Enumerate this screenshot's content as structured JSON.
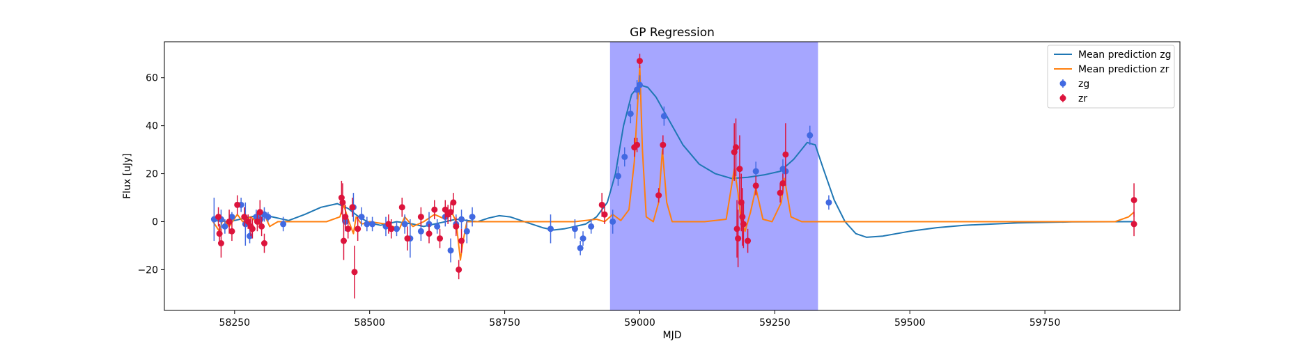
{
  "chart_data": {
    "type": "line",
    "title": "GP Regression",
    "xlabel": "MJD",
    "ylabel": "Flux [uJy]",
    "xlim": [
      58120,
      60000
    ],
    "ylim": [
      -37,
      75
    ],
    "xticks": [
      58250,
      58500,
      58750,
      59000,
      59250,
      59500,
      59750
    ],
    "yticks": [
      -20,
      0,
      20,
      40,
      60
    ],
    "grid": false,
    "legend_position": "top-right",
    "shaded_region": {
      "x": [
        58945,
        59330
      ],
      "color": "#a6a6ff"
    },
    "series": [
      {
        "name": "Mean prediction zg",
        "kind": "line",
        "color": "#1f77b4",
        "x": [
          58210,
          58240,
          58270,
          58300,
          58320,
          58350,
          58380,
          58410,
          58440,
          58460,
          58480,
          58500,
          58520,
          58550,
          58580,
          58600,
          58620,
          58640,
          58660,
          58680,
          58700,
          58720,
          58740,
          58760,
          58780,
          58800,
          58820,
          58840,
          58860,
          58880,
          58900,
          58920,
          58940,
          58955,
          58970,
          58985,
          59000,
          59015,
          59030,
          59050,
          59080,
          59110,
          59140,
          59170,
          59200,
          59230,
          59260,
          59285,
          59310,
          59325,
          59340,
          59360,
          59380,
          59400,
          59420,
          59450,
          59500,
          59550,
          59600,
          59700,
          59800,
          59900,
          59915
        ],
        "y": [
          0.5,
          0,
          1.5,
          3,
          2,
          0.5,
          3,
          6,
          7.5,
          5.5,
          2,
          -0.5,
          -1.5,
          0,
          -1,
          -2,
          -1,
          0,
          1,
          0.5,
          0,
          1.5,
          2.5,
          2,
          0.5,
          -1,
          -2.5,
          -3.5,
          -3,
          -2,
          -1,
          2,
          8,
          20,
          40,
          53,
          57,
          56,
          52,
          44,
          32,
          24,
          20,
          18,
          18.5,
          19.5,
          21,
          26,
          33,
          32,
          22,
          9,
          0,
          -5,
          -6.5,
          -6,
          -4,
          -2.5,
          -1.5,
          -0.5,
          -0.1,
          0,
          0
        ]
      },
      {
        "name": "Mean prediction zr",
        "kind": "line",
        "color": "#ff7f0e",
        "x": [
          58210,
          58222,
          58228,
          58240,
          58255,
          58265,
          58280,
          58295,
          58305,
          58315,
          58330,
          58350,
          58380,
          58420,
          58445,
          58452,
          58460,
          58470,
          58475,
          58485,
          58500,
          58530,
          58555,
          58565,
          58580,
          58600,
          58620,
          58640,
          58650,
          58660,
          58668,
          58673,
          58680,
          58700,
          58750,
          58800,
          58850,
          58880,
          58900,
          58920,
          58935,
          58950,
          58965,
          58980,
          58990,
          58995,
          59000,
          59005,
          59012,
          59025,
          59035,
          59042,
          59050,
          59060,
          59080,
          59120,
          59160,
          59175,
          59182,
          59187,
          59195,
          59205,
          59215,
          59228,
          59245,
          59262,
          59268,
          59280,
          59300,
          59350,
          59500,
          59700,
          59880,
          59905,
          59915
        ],
        "y": [
          0,
          -4,
          1,
          -2,
          3,
          0,
          2,
          -1,
          3,
          -2,
          0,
          0,
          0,
          0,
          2,
          7,
          1,
          -5,
          2,
          -1,
          0,
          -1,
          -3,
          2,
          -2,
          0,
          3,
          1,
          5,
          0,
          -16,
          -8,
          0,
          0,
          0,
          0,
          0,
          0,
          0.5,
          1,
          0,
          3,
          0.5,
          5,
          25,
          45,
          65,
          30,
          2,
          0,
          8,
          30,
          8,
          0,
          0,
          0,
          1,
          22,
          12,
          1,
          -4,
          4,
          14,
          1,
          0,
          8,
          18,
          2,
          0,
          0,
          0,
          0,
          0,
          2,
          4
        ]
      },
      {
        "name": "zg",
        "kind": "errorbar",
        "color": "#4169e1",
        "x": [
          58212,
          58225,
          58232,
          58245,
          58262,
          58270,
          58278,
          58290,
          58298,
          58305,
          58312,
          58340,
          58455,
          58470,
          58485,
          58495,
          58505,
          58530,
          58550,
          58565,
          58575,
          58595,
          58610,
          58625,
          58640,
          58650,
          58660,
          58670,
          58680,
          58690,
          58835,
          58880,
          58890,
          58895,
          58910,
          58950,
          58960,
          58972,
          58983,
          58995,
          59000,
          59045,
          59215,
          59265,
          59270,
          59315,
          59350
        ],
        "y": [
          1,
          1,
          -2,
          2,
          7,
          -1,
          -6,
          2,
          1,
          3,
          2,
          -1,
          0,
          6,
          2,
          -1,
          -1,
          -2,
          -3,
          -1,
          -7,
          -4,
          -1,
          -2,
          2,
          -12,
          -1,
          1,
          -4,
          2,
          -3,
          -3,
          -11,
          -7,
          -2,
          0,
          19,
          27,
          45,
          55,
          57,
          44,
          21,
          22,
          21,
          36,
          8
        ],
        "err": [
          9,
          4,
          3,
          2,
          3,
          9,
          3,
          3,
          2,
          3,
          2,
          3,
          4,
          6,
          4,
          3,
          3,
          4,
          3,
          4,
          8,
          4,
          5,
          3,
          4,
          5,
          4,
          4,
          5,
          4,
          6,
          4,
          3,
          3,
          3,
          5,
          4,
          4,
          4,
          4,
          4,
          4,
          4,
          4,
          4,
          4,
          3
        ]
      },
      {
        "name": "zr",
        "kind": "errorbar",
        "color": "#dc143c",
        "x": [
          58220,
          58222,
          58225,
          58240,
          58245,
          58255,
          58268,
          58275,
          58280,
          58283,
          58292,
          58297,
          58300,
          58305,
          58448,
          58450,
          58452,
          58455,
          58460,
          58468,
          58472,
          58478,
          58535,
          58540,
          58560,
          58570,
          58595,
          58610,
          58620,
          58630,
          58640,
          58645,
          58650,
          58655,
          58660,
          58665,
          58670,
          58930,
          58935,
          58990,
          58995,
          59000,
          59035,
          59043,
          59175,
          59178,
          59180,
          59182,
          59185,
          59188,
          59190,
          59192,
          59200,
          59215,
          59260,
          59265,
          59270,
          59915,
          59915
        ],
        "y": [
          2,
          -5,
          -9,
          0,
          -4,
          7,
          2,
          0,
          -2,
          -3,
          0,
          4,
          -2,
          -9,
          10,
          8,
          -8,
          2,
          -3,
          6,
          -21,
          -3,
          -1,
          -3,
          6,
          -7,
          2,
          -5,
          5,
          -7,
          5,
          3,
          4,
          8,
          -2,
          -20,
          -8,
          7,
          3,
          31,
          32,
          67,
          11,
          32,
          29,
          31,
          -3,
          -7,
          22,
          8,
          2,
          -1,
          -8,
          15,
          12,
          16,
          28,
          9,
          -1
        ],
        "err": [
          4,
          4,
          6,
          5,
          4,
          4,
          4,
          3,
          4,
          4,
          4,
          5,
          4,
          4,
          7,
          8,
          8,
          5,
          4,
          4,
          11,
          5,
          4,
          4,
          4,
          5,
          4,
          4,
          4,
          4,
          4,
          4,
          4,
          4,
          4,
          4,
          5,
          5,
          4,
          4,
          3,
          3,
          3,
          4,
          12,
          12,
          12,
          12,
          14,
          12,
          12,
          10,
          5,
          4,
          4,
          4,
          13,
          7,
          5
        ]
      }
    ]
  }
}
